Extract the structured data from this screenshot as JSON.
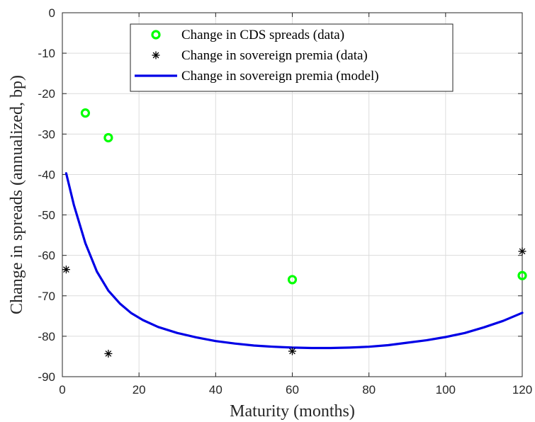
{
  "chart_data": {
    "type": "scatter",
    "xlabel": "Maturity (months)",
    "ylabel": "Change in spreads (annualized, bp)",
    "xlim": [
      0,
      120
    ],
    "ylim": [
      -90,
      0
    ],
    "xticks": [
      "0",
      "20",
      "40",
      "60",
      "80",
      "100",
      "120"
    ],
    "yticks": [
      "0",
      "-10",
      "-20",
      "-30",
      "-40",
      "-50",
      "-60",
      "-70",
      "-80",
      "-90"
    ],
    "grid": true,
    "legend_position": "top-center",
    "series": [
      {
        "name": "Change in CDS spreads (data)",
        "kind": "marker-circle",
        "color": "#00ff00",
        "points": [
          [
            6,
            -24.8
          ],
          [
            12,
            -30.9
          ],
          [
            60,
            -66.0
          ],
          [
            120,
            -65.0
          ]
        ]
      },
      {
        "name": "Change in sovereign premia (data)",
        "kind": "marker-star",
        "color": "#000000",
        "points": [
          [
            1,
            -63.5
          ],
          [
            12,
            -84.3
          ],
          [
            60,
            -83.7
          ],
          [
            120,
            -59.0
          ]
        ]
      },
      {
        "name": "Change in sovereign premia (model)",
        "kind": "line",
        "color": "#0000e6",
        "points": [
          [
            1,
            -39.7
          ],
          [
            3,
            -47.5
          ],
          [
            6,
            -57.0
          ],
          [
            9,
            -64.0
          ],
          [
            12,
            -68.7
          ],
          [
            15,
            -71.9
          ],
          [
            18,
            -74.3
          ],
          [
            21,
            -76.0
          ],
          [
            25,
            -77.7
          ],
          [
            30,
            -79.2
          ],
          [
            35,
            -80.3
          ],
          [
            40,
            -81.2
          ],
          [
            45,
            -81.8
          ],
          [
            50,
            -82.3
          ],
          [
            55,
            -82.6
          ],
          [
            60,
            -82.8
          ],
          [
            65,
            -82.9
          ],
          [
            70,
            -82.9
          ],
          [
            75,
            -82.8
          ],
          [
            80,
            -82.6
          ],
          [
            85,
            -82.2
          ],
          [
            90,
            -81.6
          ],
          [
            95,
            -81.0
          ],
          [
            100,
            -80.2
          ],
          [
            105,
            -79.2
          ],
          [
            110,
            -77.8
          ],
          [
            115,
            -76.2
          ],
          [
            120,
            -74.2
          ]
        ]
      }
    ]
  }
}
